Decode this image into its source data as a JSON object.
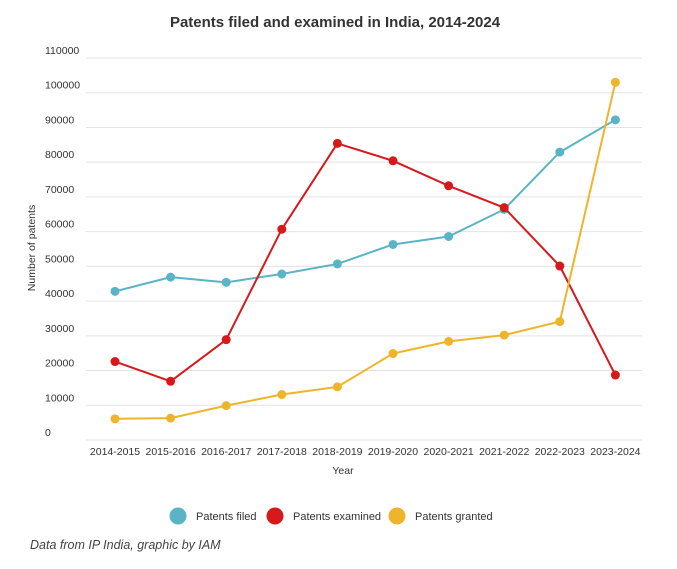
{
  "chart_data": {
    "type": "line",
    "title": "Patents filed and examined in India, 2014-2024",
    "xlabel": "Year",
    "ylabel": "Number of patents",
    "categories": [
      "2014-2015",
      "2015-2016",
      "2016-2017",
      "2017-2018",
      "2018-2019",
      "2019-2020",
      "2020-2021",
      "2021-2022",
      "2022-2023",
      "2023-2024"
    ],
    "yticks": [
      0,
      10000,
      20000,
      30000,
      40000,
      50000,
      60000,
      70000,
      80000,
      90000,
      100000,
      110000
    ],
    "ylim": [
      0,
      110000
    ],
    "grid": true,
    "legend_position": "bottom",
    "series": [
      {
        "name": "Patents filed",
        "color": "#5ab4c5",
        "values": [
          42800,
          46900,
          45400,
          47800,
          50700,
          56300,
          58600,
          66400,
          82900,
          92200
        ]
      },
      {
        "name": "Patents examined",
        "color": "#d7191c",
        "values": [
          22600,
          16900,
          28900,
          60700,
          85400,
          80400,
          73200,
          66900,
          50100,
          18700
        ]
      },
      {
        "name": "Patents granted",
        "color": "#efb52a",
        "values": [
          6100,
          6300,
          9900,
          13100,
          15300,
          24900,
          28400,
          30200,
          34100,
          103000
        ]
      }
    ]
  },
  "source_note": "Data from IP India, graphic by IAM"
}
